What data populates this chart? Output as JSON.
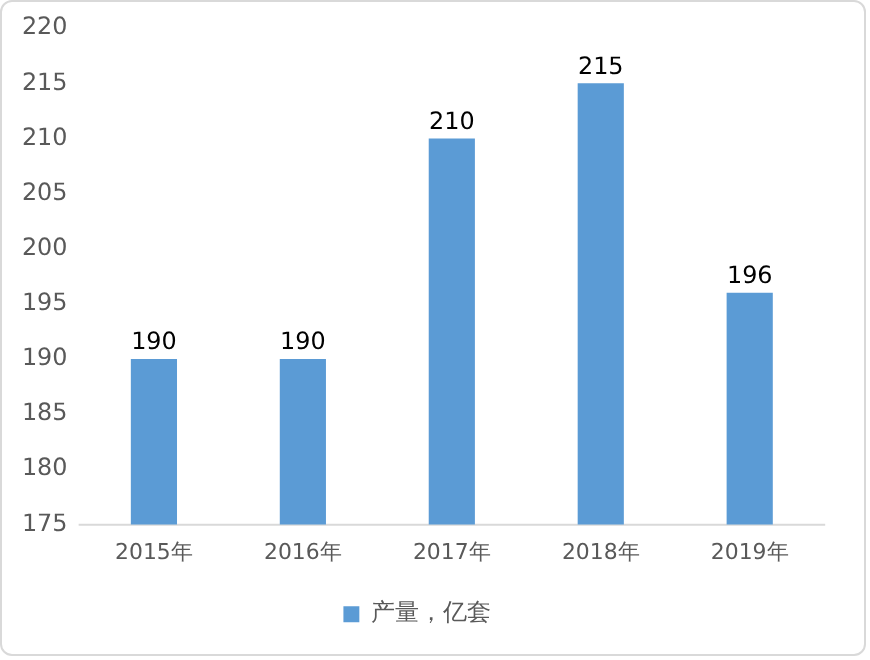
{
  "chart_data": {
    "type": "bar",
    "categories": [
      "2015年",
      "2016年",
      "2017年",
      "2018年",
      "2019年"
    ],
    "series": [
      {
        "name": "产量，亿套",
        "color": "#5b9bd5",
        "values": [
          190,
          190,
          210,
          215,
          196
        ]
      }
    ],
    "ylim": [
      175,
      220
    ],
    "yticks": [
      175,
      180,
      185,
      190,
      195,
      200,
      205,
      210,
      215,
      220
    ],
    "grid": false,
    "legend": "bottom",
    "data_labels": true
  }
}
